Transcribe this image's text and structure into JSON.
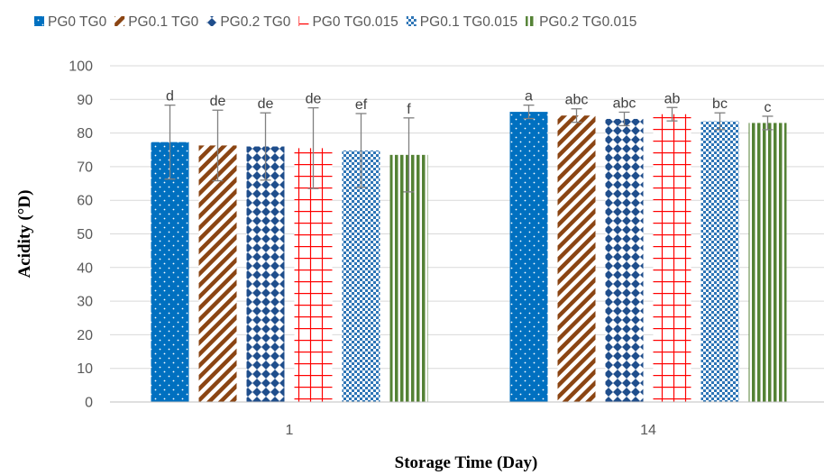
{
  "chart_data": {
    "type": "bar",
    "xlabel": "Storage Time (Day)",
    "ylabel": "Acidity (°D)",
    "ylim": [
      0,
      100
    ],
    "yticks": [
      0,
      10,
      20,
      30,
      40,
      50,
      60,
      70,
      80,
      90,
      100
    ],
    "grid": "horizontal",
    "legend_position": "top",
    "categories": [
      "1",
      "14"
    ],
    "series": [
      {
        "name": "PG0 TG0",
        "color": "#0070c0",
        "pattern": "dots",
        "values": [
          77.3,
          86.3
        ],
        "error": [
          11,
          2
        ],
        "labels": [
          "d",
          "a"
        ]
      },
      {
        "name": "PG0.1 TG0",
        "color": "#8b4513",
        "pattern": "diagonal",
        "values": [
          76.3,
          85.2
        ],
        "error": [
          10.5,
          2
        ],
        "labels": [
          "de",
          "abc"
        ]
      },
      {
        "name": "PG0.2 TG0",
        "color": "#1f4e8c",
        "pattern": "diamonds",
        "values": [
          76.0,
          84.2
        ],
        "error": [
          10,
          2
        ],
        "labels": [
          "de",
          "abc"
        ]
      },
      {
        "name": "PG0 TG0.015",
        "color": "#ff0000",
        "pattern": "grid",
        "values": [
          75.5,
          85.6
        ],
        "error": [
          12,
          2
        ],
        "labels": [
          "de",
          "ab"
        ]
      },
      {
        "name": "PG0.1 TG0.015",
        "color": "#2e75b6",
        "pattern": "checker",
        "values": [
          74.8,
          83.5
        ],
        "error": [
          11,
          2.5
        ],
        "labels": [
          "ef",
          "bc"
        ]
      },
      {
        "name": "PG0.2 TG0.015",
        "color": "#548235",
        "pattern": "vertical",
        "values": [
          73.5,
          83.0
        ],
        "error": [
          11,
          2
        ],
        "labels": [
          "f",
          "c"
        ]
      }
    ]
  }
}
